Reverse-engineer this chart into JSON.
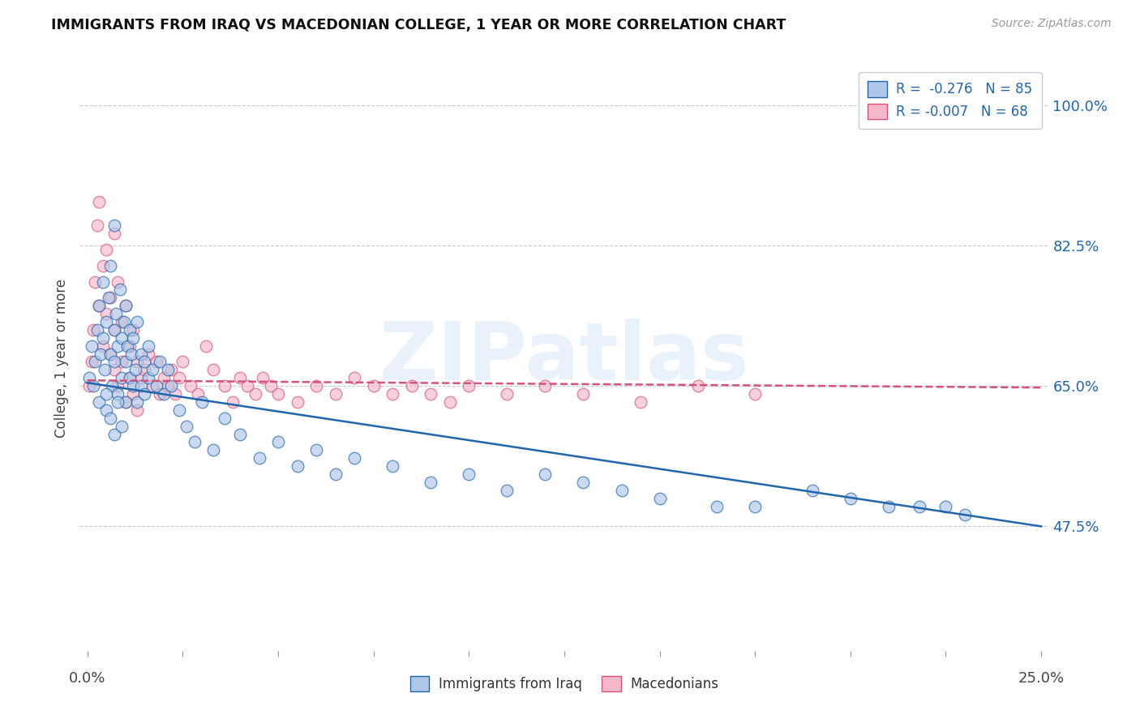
{
  "title": "IMMIGRANTS FROM IRAQ VS MACEDONIAN COLLEGE, 1 YEAR OR MORE CORRELATION CHART",
  "source": "Source: ZipAtlas.com",
  "ylabel": "College, 1 year or more",
  "xlim": [
    -0.002,
    0.252
  ],
  "ylim": [
    0.32,
    1.05
  ],
  "xtick_minor_positions": [
    0.0,
    0.025,
    0.05,
    0.075,
    0.1,
    0.125,
    0.15,
    0.175,
    0.2,
    0.225,
    0.25
  ],
  "xtick_label_positions": [
    0.0,
    0.25
  ],
  "xticklabels": [
    "0.0%",
    "25.0%"
  ],
  "ytick_positions": [
    0.475,
    0.65,
    0.825,
    1.0
  ],
  "ytick_labels": [
    "47.5%",
    "65.0%",
    "82.5%",
    "100.0%"
  ],
  "legend_r1": "R =  -0.276   N = 85",
  "legend_r2": "R = -0.007   N = 68",
  "color_iraq": "#aec6e8",
  "color_mac": "#f5b8c8",
  "line_iraq": "#2166ac",
  "line_mac": "#d6527a",
  "watermark_text": "ZIPatlas",
  "background_color": "#ffffff",
  "grid_color": "#c8c8c8",
  "iraq_x": [
    0.0005,
    0.001,
    0.0015,
    0.002,
    0.0025,
    0.003,
    0.003,
    0.0035,
    0.004,
    0.004,
    0.0045,
    0.005,
    0.005,
    0.0055,
    0.006,
    0.006,
    0.0065,
    0.007,
    0.007,
    0.007,
    0.0075,
    0.008,
    0.008,
    0.0085,
    0.009,
    0.009,
    0.0095,
    0.01,
    0.01,
    0.01,
    0.0105,
    0.011,
    0.011,
    0.0115,
    0.012,
    0.012,
    0.0125,
    0.013,
    0.013,
    0.014,
    0.014,
    0.015,
    0.015,
    0.016,
    0.016,
    0.017,
    0.018,
    0.019,
    0.02,
    0.021,
    0.022,
    0.024,
    0.026,
    0.028,
    0.03,
    0.033,
    0.036,
    0.04,
    0.045,
    0.05,
    0.055,
    0.06,
    0.065,
    0.07,
    0.08,
    0.09,
    0.1,
    0.11,
    0.12,
    0.13,
    0.14,
    0.15,
    0.165,
    0.175,
    0.19,
    0.2,
    0.21,
    0.218,
    0.225,
    0.23,
    0.005,
    0.006,
    0.007,
    0.008,
    0.009
  ],
  "iraq_y": [
    0.66,
    0.7,
    0.65,
    0.68,
    0.72,
    0.75,
    0.63,
    0.69,
    0.71,
    0.78,
    0.67,
    0.73,
    0.62,
    0.76,
    0.69,
    0.8,
    0.65,
    0.72,
    0.68,
    0.85,
    0.74,
    0.7,
    0.64,
    0.77,
    0.71,
    0.66,
    0.73,
    0.68,
    0.75,
    0.63,
    0.7,
    0.66,
    0.72,
    0.69,
    0.65,
    0.71,
    0.67,
    0.73,
    0.63,
    0.69,
    0.65,
    0.68,
    0.64,
    0.7,
    0.66,
    0.67,
    0.65,
    0.68,
    0.64,
    0.67,
    0.65,
    0.62,
    0.6,
    0.58,
    0.63,
    0.57,
    0.61,
    0.59,
    0.56,
    0.58,
    0.55,
    0.57,
    0.54,
    0.56,
    0.55,
    0.53,
    0.54,
    0.52,
    0.54,
    0.53,
    0.52,
    0.51,
    0.5,
    0.5,
    0.52,
    0.51,
    0.5,
    0.5,
    0.5,
    0.49,
    0.64,
    0.61,
    0.59,
    0.63,
    0.6
  ],
  "mac_x": [
    0.0005,
    0.001,
    0.0015,
    0.002,
    0.0025,
    0.003,
    0.003,
    0.004,
    0.004,
    0.005,
    0.005,
    0.006,
    0.006,
    0.007,
    0.007,
    0.007,
    0.008,
    0.008,
    0.009,
    0.009,
    0.01,
    0.01,
    0.011,
    0.011,
    0.012,
    0.012,
    0.013,
    0.013,
    0.014,
    0.015,
    0.016,
    0.017,
    0.018,
    0.019,
    0.02,
    0.021,
    0.022,
    0.023,
    0.024,
    0.025,
    0.027,
    0.029,
    0.031,
    0.033,
    0.036,
    0.038,
    0.04,
    0.042,
    0.044,
    0.046,
    0.048,
    0.05,
    0.055,
    0.06,
    0.065,
    0.07,
    0.075,
    0.08,
    0.085,
    0.09,
    0.095,
    0.1,
    0.11,
    0.12,
    0.13,
    0.145,
    0.16,
    0.175
  ],
  "mac_y": [
    0.65,
    0.68,
    0.72,
    0.78,
    0.85,
    0.88,
    0.75,
    0.8,
    0.7,
    0.82,
    0.74,
    0.76,
    0.69,
    0.84,
    0.67,
    0.72,
    0.78,
    0.65,
    0.73,
    0.68,
    0.75,
    0.63,
    0.7,
    0.66,
    0.72,
    0.64,
    0.68,
    0.62,
    0.66,
    0.67,
    0.69,
    0.65,
    0.68,
    0.64,
    0.66,
    0.65,
    0.67,
    0.64,
    0.66,
    0.68,
    0.65,
    0.64,
    0.7,
    0.67,
    0.65,
    0.63,
    0.66,
    0.65,
    0.64,
    0.66,
    0.65,
    0.64,
    0.63,
    0.65,
    0.64,
    0.66,
    0.65,
    0.64,
    0.65,
    0.64,
    0.63,
    0.65,
    0.64,
    0.65,
    0.64,
    0.63,
    0.65,
    0.64
  ],
  "iraq_trend_x0": 0.0,
  "iraq_trend_x1": 0.25,
  "iraq_trend_y0": 0.654,
  "iraq_trend_y1": 0.475,
  "mac_trend_x0": 0.0,
  "mac_trend_x1": 0.25,
  "mac_trend_y0": 0.657,
  "mac_trend_y1": 0.648
}
